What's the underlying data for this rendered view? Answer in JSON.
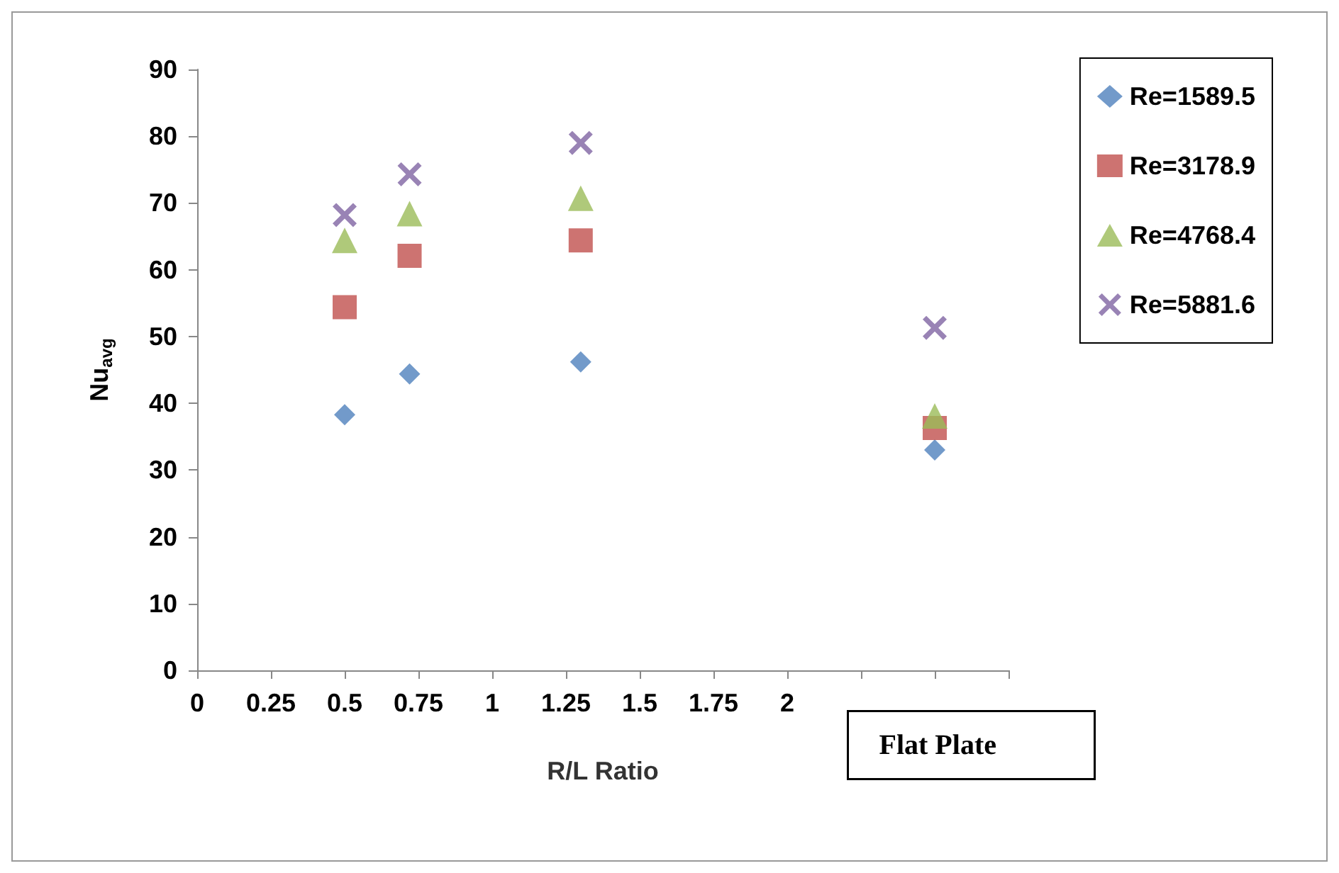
{
  "chart_data": {
    "type": "scatter",
    "xlabel": "R/L Ratio",
    "ylabel": "Nu$_{avg}$",
    "xlim": [
      0,
      2.75
    ],
    "xticks": [
      0,
      0.25,
      0.5,
      0.75,
      1,
      1.25,
      1.5,
      1.75,
      2,
      {
        "value": 2.25,
        "label": null
      },
      {
        "value": 2.5,
        "label": null
      },
      {
        "value": 2.75,
        "label": null
      }
    ],
    "ylim": [
      0,
      90
    ],
    "yticks": [
      0,
      10,
      20,
      30,
      40,
      50,
      60,
      70,
      80,
      90
    ],
    "grid": false,
    "legend": "top right",
    "annotations": [
      "Flat Plate"
    ],
    "series": [
      {
        "name": "Re=1589.5",
        "color": "#4f81bd",
        "marker": "diamond",
        "x": [
          0.5,
          0.72,
          1.3,
          2.5
        ],
        "values": [
          38.3,
          44.4,
          46.2,
          33.0
        ]
      },
      {
        "name": "Re=3178.9",
        "color": "#c0504d",
        "marker": "square",
        "x": [
          0.5,
          0.72,
          1.3,
          2.5
        ],
        "values": [
          54.4,
          62.1,
          64.4,
          36.3
        ]
      },
      {
        "name": "Re=4768.4",
        "color": "#9bbb59",
        "marker": "triangle",
        "x": [
          0.5,
          0.72,
          1.3,
          2.5
        ],
        "values": [
          64.4,
          68.4,
          70.7,
          38.1
        ]
      },
      {
        "name": "Re=5881.6",
        "color": "#8064a2",
        "marker": "cross",
        "x": [
          0.5,
          0.72,
          1.3,
          2.5
        ],
        "values": [
          68.2,
          74.3,
          79.0,
          51.3
        ]
      }
    ]
  }
}
